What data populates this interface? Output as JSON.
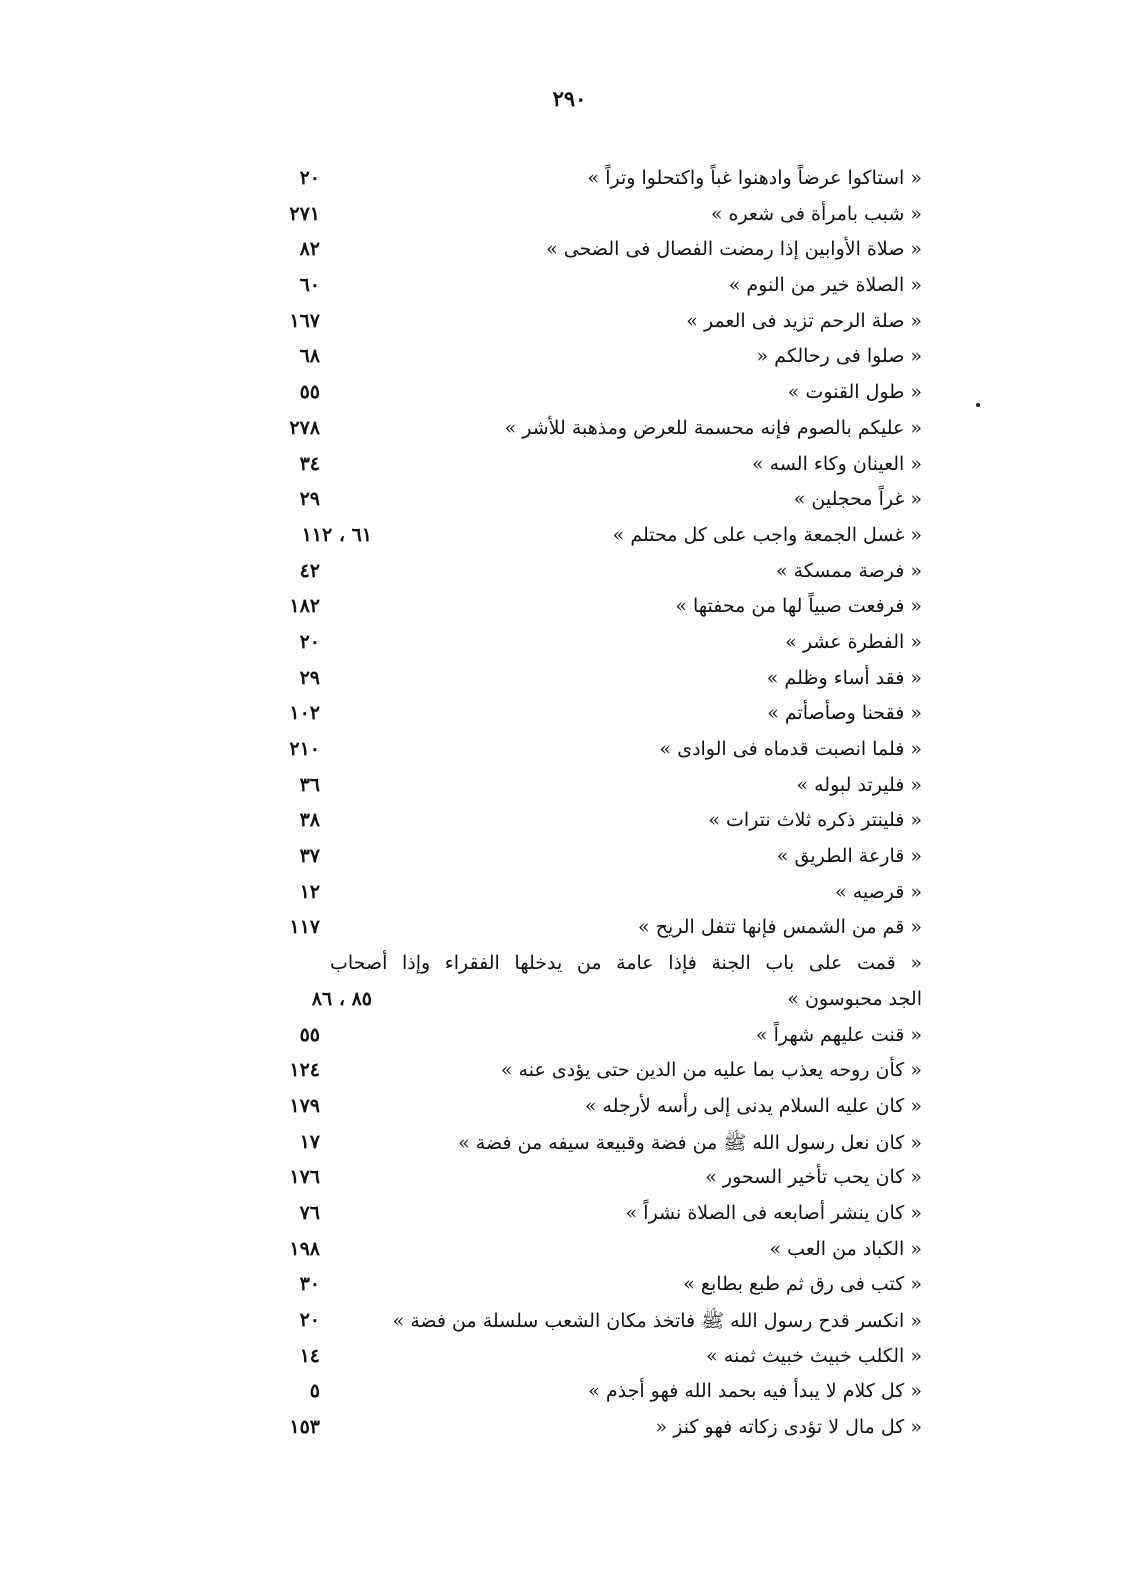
{
  "page_number": "٢٩٠",
  "entries": [
    {
      "text": "« استاكوا عرضاً وادهنوا غباً واكتحلوا وتراً »",
      "pages": "٢٠"
    },
    {
      "text": "« شبب بامرأة فى شعره »",
      "pages": "٢٧١"
    },
    {
      "text": "« صلاة الأوابين إذا رمضت الفصال فى الضحى »",
      "pages": "٨٢"
    },
    {
      "text": "« الصلاة خير من النوم »",
      "pages": "٦٠"
    },
    {
      "text": "« صلة الرحم تزيد فى العمر »",
      "pages": "١٦٧"
    },
    {
      "text": "« صلوا فى رحالكم «",
      "pages": "٦٨"
    },
    {
      "text": "« طول القنوت »",
      "pages": "٥٥"
    },
    {
      "text": "« عليكم بالصوم فإنه محسمة للعرض ومذهبة للأشر »",
      "pages": "٢٧٨"
    },
    {
      "text": "« العينان وكاء السه »",
      "pages": "٣٤"
    },
    {
      "text": "« غراً محجلين »",
      "pages": "٢٩"
    },
    {
      "text": "« غسل الجمعة واجب على كل محتلم »",
      "pages": "٦١ ، ١١٢"
    },
    {
      "text": "« فرصة ممسكة »",
      "pages": "٤٢"
    },
    {
      "text": "« فرفعت صبياً لها من محفتها »",
      "pages": "١٨٢"
    },
    {
      "text": "« الفطرة عشر »",
      "pages": "٢٠"
    },
    {
      "text": "« فقد أساء وظلم »",
      "pages": "٢٩"
    },
    {
      "text": "« فقحنا وصأصأتم »",
      "pages": "١٠٢"
    },
    {
      "text": "« فلما انصبت قدماه فى الوادى »",
      "pages": "٢١٠"
    },
    {
      "text": "« فليرتد لبوله »",
      "pages": "٣٦"
    },
    {
      "text": "« فلينتر ذكره ثلاث نترات »",
      "pages": "٣٨"
    },
    {
      "text": "« قارعة الطريق »",
      "pages": "٣٧"
    },
    {
      "text": "« قرصيه »",
      "pages": "١٢"
    },
    {
      "text": "« قم من الشمس فإنها تتفل الريح »",
      "pages": "١١٧"
    },
    {
      "text": "« قمت على باب الجنة فإذا عامة من يدخلها الفقراء وإذا أصحاب",
      "pages": ""
    },
    {
      "text": "الجد محبوسون »",
      "pages": "٨٥ ، ٨٦"
    },
    {
      "text": "« قنت عليهم شهراً »",
      "pages": "٥٥"
    },
    {
      "text": "« كأن روحه يعذب بما عليه من الدين حتى يؤدى عنه »",
      "pages": "١٢٤"
    },
    {
      "text": "« كان عليه السلام يدنى إلى رأسه لأرجله »",
      "pages": "١٧٩"
    },
    {
      "text": "« كان نعل رسول الله ﷺ من فضة وقبيعة سيفه من فضة »",
      "pages": "١٧"
    },
    {
      "text": "« كان يحب تأخير السحور »",
      "pages": "١٧٦"
    },
    {
      "text": "« كان ينشر أصابعه فى الصلاة نشراً »",
      "pages": "٧٦"
    },
    {
      "text": "« الكباد من العب »",
      "pages": "١٩٨"
    },
    {
      "text": "« كتب فى رق ثم طبع بطابع »",
      "pages": "٣٠"
    },
    {
      "text": "« انكسر قدح رسول الله ﷺ فاتخذ مكان الشعب سلسلة من فضة »",
      "pages": "٢٠"
    },
    {
      "text": "« الكلب خبيث خبيث ثمنه »",
      "pages": "١٤"
    },
    {
      "text": "« كل كلام لا يبدأ فيه بحمد الله فهو أجذم »",
      "pages": "٥"
    },
    {
      "text": "« كل مال لا تؤدى زكاته فهو كنز «",
      "pages": "١٥٣"
    }
  ]
}
